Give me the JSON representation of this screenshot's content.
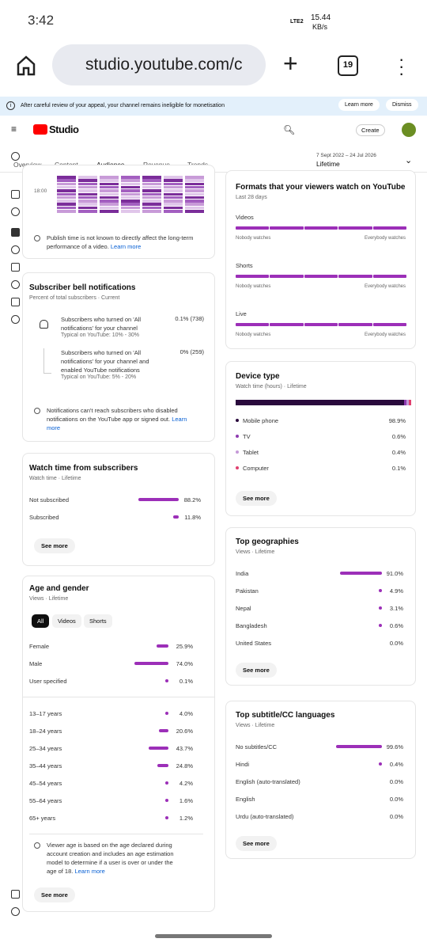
{
  "status": {
    "time": "3:42",
    "network": "LTE2",
    "speed": "15.44",
    "speed_unit": "KB/s"
  },
  "browser": {
    "url": "studio.youtube.com/c",
    "tab_count": "19"
  },
  "banner": {
    "text": "After careful review of your appeal, your channel remains ineligible for monetisation",
    "learn_more": "Learn more",
    "dismiss": "Dismiss"
  },
  "header": {
    "logo": "Studio",
    "create": "Create"
  },
  "tabs": {
    "items": [
      "Overview",
      "Content",
      "Audience",
      "Revenue",
      "Trends"
    ],
    "active": 2
  },
  "date_range": {
    "range": "7 Sept 2022 – 24 Jul 2026",
    "period": "Lifetime"
  },
  "left": {
    "heatmap": {
      "time_label": "18:00",
      "note": "Publish time is not known to directly affect the long-term performance of a video.",
      "link": "Learn more"
    },
    "bell": {
      "title": "Subscriber bell notifications",
      "subtitle": "Percent of total subscribers · Current",
      "rows": [
        {
          "text": "Subscribers who turned on 'All notifications' for your channel",
          "typical": "Typical on YouTube: 10% - 30%",
          "value": "0.1% (738)"
        },
        {
          "text": "Subscribers who turned on 'All notifications' for your channel and enabled YouTube notifications",
          "typical": "Typical on YouTube: 5% - 20%",
          "value": "0% (259)"
        }
      ],
      "note": "Notifications can't reach subscribers who disabled notifications on the YouTube app or signed out.",
      "link": "Learn more"
    },
    "watch_time": {
      "title": "Watch time from subscribers",
      "subtitle": "Watch time · Lifetime",
      "rows": [
        {
          "label": "Not subscribed",
          "value": 88.2,
          "value_label": "88.2%"
        },
        {
          "label": "Subscribed",
          "value": 11.8,
          "value_label": "11.8%"
        }
      ],
      "button": "See more"
    },
    "age_gender": {
      "title": "Age and gender",
      "subtitle": "Views · Lifetime",
      "chips": [
        "All",
        "Videos",
        "Shorts"
      ],
      "gender": [
        {
          "label": "Female",
          "value": 25.9,
          "value_label": "25.9%"
        },
        {
          "label": "Male",
          "value": 74.0,
          "value_label": "74.0%"
        },
        {
          "label": "User specified",
          "value": 0.1,
          "value_label": "0.1%"
        }
      ],
      "age": [
        {
          "label": "13–17 years",
          "value": 4.0,
          "value_label": "4.0%"
        },
        {
          "label": "18–24 years",
          "value": 20.6,
          "value_label": "20.6%"
        },
        {
          "label": "25–34 years",
          "value": 43.7,
          "value_label": "43.7%"
        },
        {
          "label": "35–44 years",
          "value": 24.8,
          "value_label": "24.8%"
        },
        {
          "label": "45–54 years",
          "value": 4.2,
          "value_label": "4.2%"
        },
        {
          "label": "55–64 years",
          "value": 1.6,
          "value_label": "1.6%"
        },
        {
          "label": "65+ years",
          "value": 1.2,
          "value_label": "1.2%"
        }
      ],
      "note": "Viewer age is based on the age declared during account creation and includes an age estimation model to determine if a user is over or under the age of 18.",
      "link": "Learn more",
      "button": "See more"
    }
  },
  "right": {
    "formats": {
      "title": "Formats that your viewers watch on YouTube",
      "subtitle": "Last 28 days",
      "formats": [
        "Videos",
        "Shorts",
        "Live"
      ],
      "scale_min": "Nobody watches",
      "scale_max": "Everybody watches"
    },
    "device": {
      "title": "Device type",
      "subtitle": "Watch time (hours) · Lifetime",
      "rows": [
        {
          "label": "Mobile phone",
          "value": 98.9,
          "value_label": "98.9%",
          "color": "#2a0a3d"
        },
        {
          "label": "TV",
          "value": 0.6,
          "value_label": "0.6%",
          "color": "#8e3bb0"
        },
        {
          "label": "Tablet",
          "value": 0.4,
          "value_label": "0.4%",
          "color": "#c59ad8"
        },
        {
          "label": "Computer",
          "value": 0.1,
          "value_label": "0.1%",
          "color": "#e0406f"
        }
      ],
      "button": "See more"
    },
    "geo": {
      "title": "Top geographies",
      "subtitle": "Views · Lifetime",
      "rows": [
        {
          "label": "India",
          "value": 91.0,
          "value_label": "91.0%"
        },
        {
          "label": "Pakistan",
          "value": 4.9,
          "value_label": "4.9%"
        },
        {
          "label": "Nepal",
          "value": 3.1,
          "value_label": "3.1%"
        },
        {
          "label": "Bangladesh",
          "value": 0.6,
          "value_label": "0.6%"
        },
        {
          "label": "United States",
          "value": 0.0,
          "value_label": "0.0%"
        }
      ],
      "button": "See more"
    },
    "subtitles": {
      "title": "Top subtitle/CC languages",
      "subtitle": "Views · Lifetime",
      "rows": [
        {
          "label": "No subtitles/CC",
          "value": 99.6,
          "value_label": "99.6%"
        },
        {
          "label": "Hindi",
          "value": 0.4,
          "value_label": "0.4%"
        },
        {
          "label": "English (auto-translated)",
          "value": 0.0,
          "value_label": "0.0%"
        },
        {
          "label": "English",
          "value": 0.0,
          "value_label": "0.0%"
        },
        {
          "label": "Urdu (auto-translated)",
          "value": 0.0,
          "value_label": "0.0%"
        }
      ],
      "button": "See more"
    }
  }
}
